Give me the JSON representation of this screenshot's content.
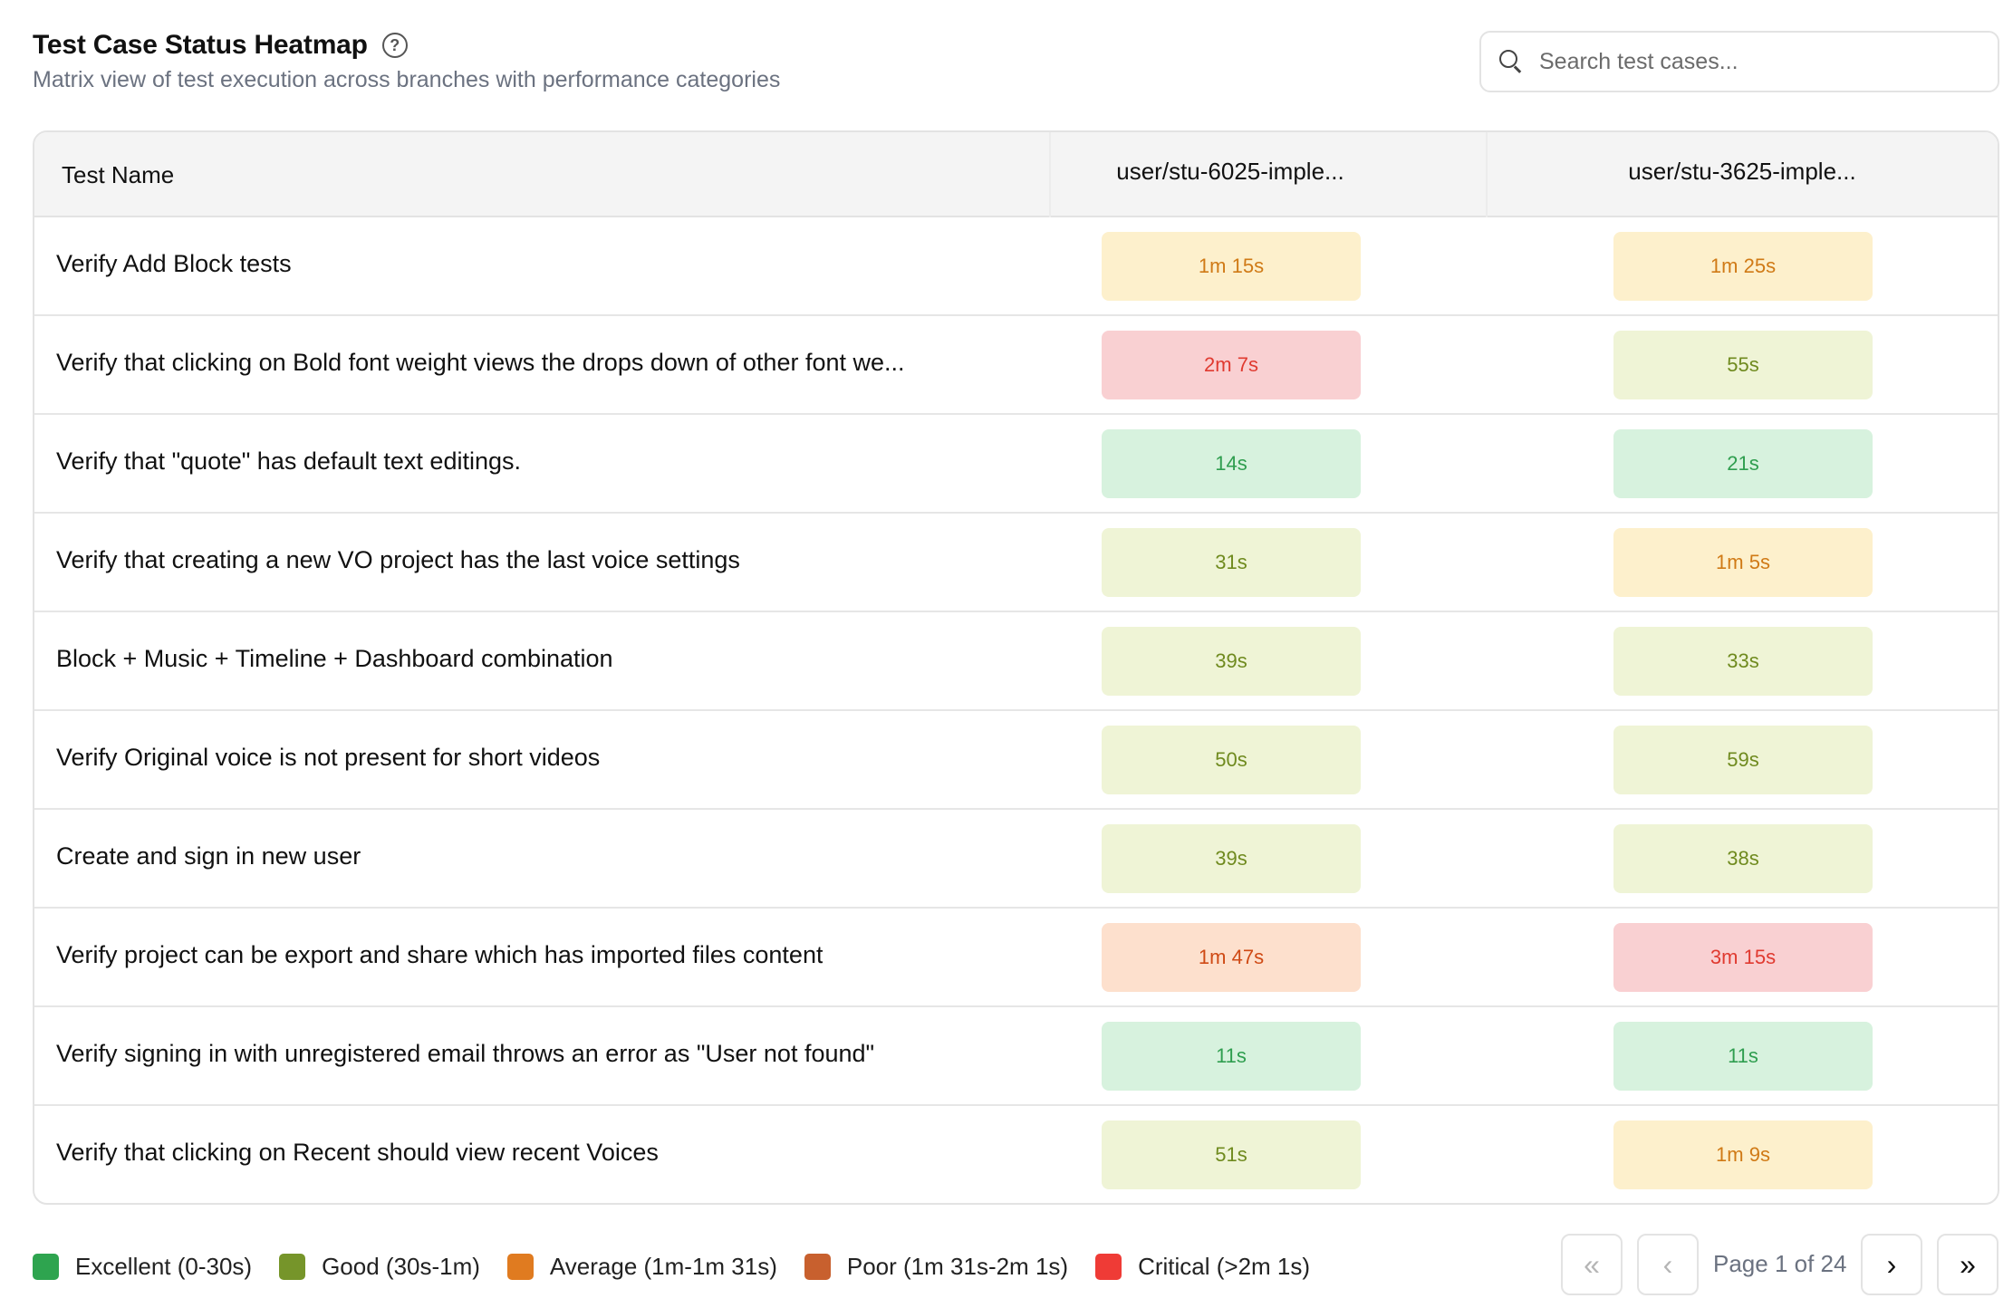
{
  "header": {
    "title": "Test Case Status Heatmap",
    "subtitle": "Matrix view of test execution across branches with performance categories"
  },
  "search": {
    "placeholder": "Search test cases..."
  },
  "table": {
    "columns": [
      "Test Name",
      "user/stu-6025-imple...",
      "user/stu-3625-imple..."
    ],
    "rows": [
      {
        "name": "Verify Add Block tests",
        "c1": "1m 15s",
        "c1_cat": "average",
        "c2": "1m 25s",
        "c2_cat": "average"
      },
      {
        "name": "Verify that clicking on Bold font weight views the drops down of other font we...",
        "c1": "2m 7s",
        "c1_cat": "critical",
        "c2": "55s",
        "c2_cat": "good"
      },
      {
        "name": "Verify that \"quote\" has default text editings.",
        "c1": "14s",
        "c1_cat": "excellent",
        "c2": "21s",
        "c2_cat": "excellent"
      },
      {
        "name": "Verify that creating a new VO project has the last voice settings",
        "c1": "31s",
        "c1_cat": "good",
        "c2": "1m 5s",
        "c2_cat": "average"
      },
      {
        "name": "Block + Music + Timeline + Dashboard combination",
        "c1": "39s",
        "c1_cat": "good",
        "c2": "33s",
        "c2_cat": "good"
      },
      {
        "name": "Verify Original voice is not present for short videos",
        "c1": "50s",
        "c1_cat": "good",
        "c2": "59s",
        "c2_cat": "good"
      },
      {
        "name": "Create and sign in new user",
        "c1": "39s",
        "c1_cat": "good",
        "c2": "38s",
        "c2_cat": "good"
      },
      {
        "name": "Verify project can be export and share which has imported files content",
        "c1": "1m 47s",
        "c1_cat": "poor",
        "c2": "3m 15s",
        "c2_cat": "critical"
      },
      {
        "name": "Verify signing in with unregistered email throws an error as \"User not found\"",
        "c1": "11s",
        "c1_cat": "excellent",
        "c2": "11s",
        "c2_cat": "excellent"
      },
      {
        "name": "Verify that clicking on Recent should view recent Voices",
        "c1": "51s",
        "c1_cat": "good",
        "c2": "1m 9s",
        "c2_cat": "average"
      }
    ]
  },
  "categories": {
    "excellent": {
      "bg": "#d7f2de",
      "fg": "#2f9e4f",
      "swatch": "#2ea44f"
    },
    "good": {
      "bg": "#eff4d6",
      "fg": "#6f8a1e",
      "swatch": "#76952a"
    },
    "average": {
      "bg": "#fdf0cc",
      "fg": "#d07a16",
      "swatch": "#e07b20"
    },
    "poor": {
      "bg": "#fde0cd",
      "fg": "#cf4a15",
      "swatch": "#c8602e"
    },
    "critical": {
      "bg": "#f9d0d2",
      "fg": "#e03a30",
      "swatch": "#ef3b36"
    }
  },
  "legend": [
    {
      "key": "excellent",
      "label": "Excellent (0-30s)"
    },
    {
      "key": "good",
      "label": "Good (30s-1m)"
    },
    {
      "key": "average",
      "label": "Average (1m-1m 31s)"
    },
    {
      "key": "poor",
      "label": "Poor (1m 31s-2m 1s)"
    },
    {
      "key": "critical",
      "label": "Critical (>2m 1s)"
    }
  ],
  "pagination": {
    "first": "«",
    "prev": "‹",
    "label": "Page 1 of 24",
    "next": "›",
    "last": "»"
  }
}
